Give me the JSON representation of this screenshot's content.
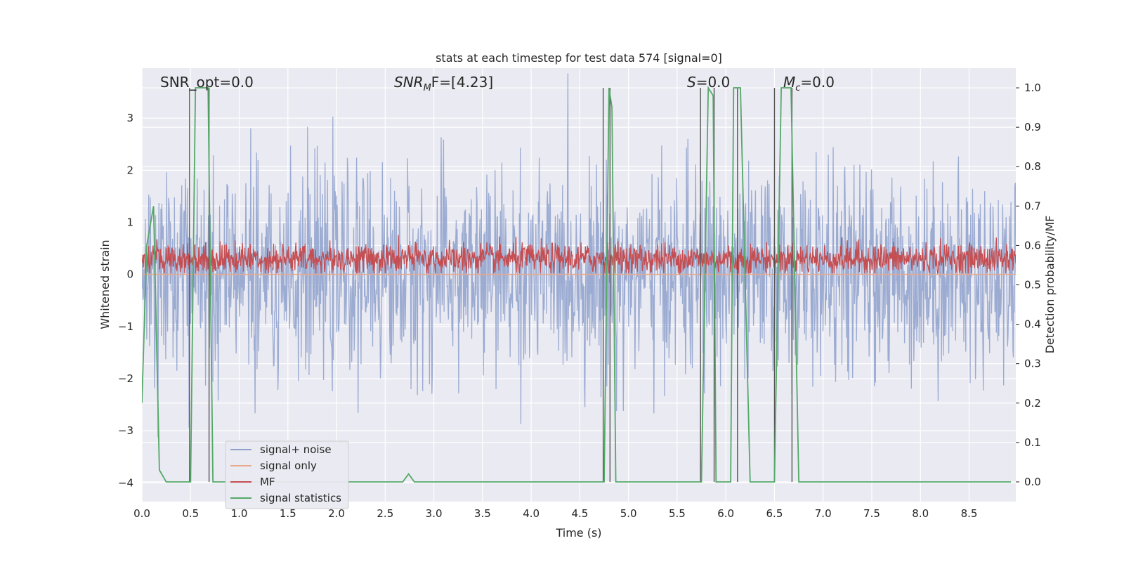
{
  "chart_data": {
    "type": "line",
    "title": "stats at each timestep for test data 574 [signal=0]",
    "xlabel": "Time (s)",
    "ylabel": "Whitened strain",
    "y2label": "Detection probability/MF",
    "xlim": [
      0.0,
      8.98
    ],
    "ylim": [
      -4.36,
      3.96
    ],
    "y2lim": [
      -0.05,
      1.05
    ],
    "xticks": [
      "0.0",
      "0.5",
      "1.0",
      "1.5",
      "2.0",
      "2.5",
      "3.0",
      "3.5",
      "4.0",
      "4.5",
      "5.0",
      "5.5",
      "6.0",
      "6.5",
      "7.0",
      "7.5",
      "8.0",
      "8.5"
    ],
    "yticks": [
      "3",
      "2",
      "1",
      "0",
      "−1",
      "−2",
      "−3",
      "−4"
    ],
    "y2ticks": [
      "1.0",
      "0.9",
      "0.8",
      "0.7",
      "0.6",
      "0.5",
      "0.4",
      "0.3",
      "0.2",
      "0.1",
      "0.0"
    ],
    "grid": true,
    "legend_placement": "lower-left",
    "annotations": {
      "snr_opt": "SNR_opt=0.0",
      "snr_mf_main": "SNR",
      "snr_mf_sub": "M",
      "snr_mf_rest": "F=[4.23]",
      "s_main": "S",
      "s_rest": "=0.0",
      "mc_main": "M",
      "mc_sub": "c",
      "mc_rest": "=0.0"
    },
    "series": [
      {
        "name": "signal+ noise",
        "color": "#8da0cb",
        "kind": "noise",
        "std": 0.95,
        "axis": "left"
      },
      {
        "name": "signal only",
        "color": "#e8a98c",
        "kind": "flat",
        "value": 0.0,
        "axis": "left"
      },
      {
        "name": "MF",
        "color": "#c44e52",
        "kind": "mf",
        "mean": 0.3,
        "spread": 0.15,
        "axis": "left"
      },
      {
        "name": "signal statistics",
        "color": "#55a868",
        "kind": "points",
        "axis": "right",
        "x": [
          0.0,
          0.05,
          0.12,
          0.18,
          0.25,
          0.5,
          0.55,
          0.58,
          0.68,
          0.73,
          5.15,
          5.9,
          6.0,
          0.8,
          2.68,
          2.74,
          2.8,
          4.75,
          4.8,
          4.83,
          4.87,
          5.75,
          5.82,
          5.87,
          5.9,
          6.05,
          6.08,
          6.15,
          6.25,
          6.5,
          6.57,
          6.67,
          6.75,
          8.93
        ],
        "y": [
          0.2,
          0.6,
          0.7,
          0.03,
          0.0,
          0.0,
          1.0,
          1.0,
          1.0,
          0.0,
          0.0,
          0.0,
          0.0,
          0.0,
          0.0,
          0.02,
          0.0,
          0.0,
          1.0,
          0.95,
          0.0,
          0.0,
          1.0,
          0.98,
          0.0,
          0.0,
          1.0,
          1.0,
          0.0,
          0.0,
          1.0,
          1.0,
          0.0,
          0.0
        ]
      }
    ],
    "vlines": [
      0.49,
      0.69,
      4.74,
      4.81,
      5.74,
      5.88,
      6.12,
      6.5,
      6.68
    ]
  }
}
